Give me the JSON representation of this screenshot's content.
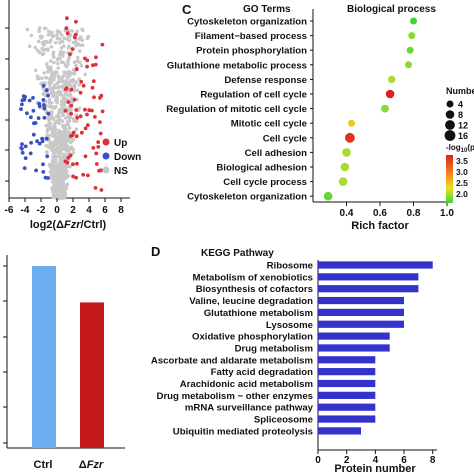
{
  "panels": {
    "c_letter": "C",
    "d_letter": "D"
  },
  "volcano": {
    "xlabel_prefix": "log2(Δ",
    "xlabel_italic": "Fzr",
    "xlabel_suffix": "/Ctrl)",
    "legend": [
      "Up",
      "Down",
      "NS"
    ]
  },
  "barchart": {
    "categories": [
      "Ctrl",
      "ΔFzr"
    ],
    "label_ctrl": "Ctrl",
    "label_fzr_delta": "Δ",
    "label_fzr_italic": "Fzr"
  },
  "go": {
    "header_terms": "GO Terms",
    "header_process": "Biological process",
    "size_title": "Number",
    "color_title": "-log10(p",
    "color_title_main": "-log",
    "color_title_sub": "10",
    "color_title_rest": "(p"
  },
  "kegg": {
    "header": "KEGG Pathway"
  },
  "colors": {
    "up": "#e0303a",
    "down": "#3a4fc4",
    "ns": "#c8c8c8",
    "ctrl_bar": "#6aaef0",
    "fzr_bar": "#c41a1a",
    "kegg_bar": "#3333cc",
    "go_low": "#3fd43a",
    "go_high": "#e02020"
  },
  "chart_data": [
    {
      "type": "scatter",
      "xlabel": "log2(ΔFzr/Ctrl)",
      "xlim": [
        -6,
        8
      ],
      "xticks": [
        -6,
        -4,
        -2,
        0,
        2,
        4,
        6,
        8
      ],
      "legend": [
        "Up",
        "Down",
        "NS"
      ],
      "legend_position": "bottom-right"
    },
    {
      "type": "bar",
      "categories": [
        "Ctrl",
        "ΔFzr"
      ],
      "values": [
        1.0,
        0.8
      ]
    },
    {
      "type": "scatter",
      "title": "Biological process",
      "xlabel": "Rich factor",
      "xlim": [
        0.2,
        1.0
      ],
      "xticks": [
        0.4,
        0.6,
        0.8,
        1.0
      ],
      "xtick_labels": [
        "0.4",
        "0.6",
        "0.8",
        "1.0"
      ],
      "categories": [
        "Cytoskeleton organization",
        "Filament−based process",
        "Protein phosphorylation",
        "Glutathione metabolic process",
        "Defense response",
        "Regulation of cell cycle",
        "Regulation of mitotic cell cycle",
        "Mitotic cell cycle",
        "Cell cycle",
        "Cell adhesion",
        "Biological adhesion",
        "Cell cycle process",
        "Cytoskeleton organization"
      ],
      "rich_factor": [
        0.8,
        0.79,
        0.78,
        0.77,
        0.67,
        0.66,
        0.63,
        0.43,
        0.42,
        0.4,
        0.39,
        0.38,
        0.29
      ],
      "number": [
        4,
        4,
        4,
        4,
        5,
        8,
        6,
        4,
        12,
        8,
        8,
        8,
        8
      ],
      "neg_log10_p": [
        2.0,
        2.2,
        2.1,
        2.2,
        2.3,
        3.6,
        2.2,
        2.6,
        3.5,
        2.3,
        2.3,
        2.3,
        2.1
      ],
      "size_legend": [
        4,
        8,
        12,
        16
      ],
      "color_legend_ticks": [
        "3.5",
        "3.0",
        "2.5",
        "2.0"
      ],
      "color_range": [
        2.0,
        3.6
      ]
    },
    {
      "type": "bar",
      "orientation": "horizontal",
      "title": "KEGG Pathway",
      "xlabel": "Protein number",
      "xlim": [
        0,
        8.3
      ],
      "xticks": [
        0,
        2,
        4,
        6,
        8
      ],
      "categories": [
        "Ribosome",
        "Metabolism of xenobiotics",
        "Biosynthesis of cofactors",
        "Valine, leucine degradation",
        "Glutathione metabolism",
        "Lysosome",
        "Oxidative phosphorylation",
        "Drug metabolism",
        "Ascorbate and aldarate metabolism",
        "Fatty acid degradation",
        "Arachidonic acid metabolism",
        "Drug metabolism − other enzymes",
        "mRNA surveillance pathway",
        "Spliceosome",
        "Ubiquitin mediated proteolysis"
      ],
      "values": [
        8,
        7,
        7,
        6,
        6,
        6,
        5,
        5,
        4,
        4,
        4,
        4,
        4,
        4,
        3
      ]
    }
  ]
}
